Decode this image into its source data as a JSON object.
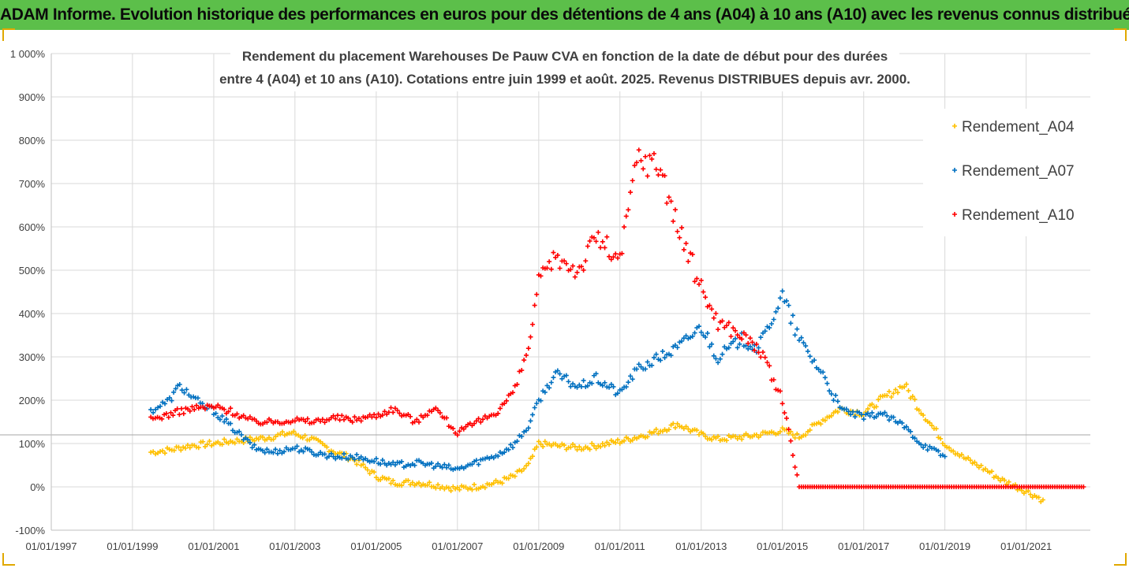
{
  "banner_title": "ADAM Informe. Evolution historique des performances en euros pour des détentions de 4 ans (A04) à 10 ans (A10) avec les revenus connus distribués",
  "chart_data": {
    "type": "scatter",
    "title_line1": "Rendement du placement Warehouses De Pauw CVA en fonction de la date de début pour des durées",
    "title_line2": "entre 4 (A04) et 10 ans (A10). Cotations entre juin 1999 et août. 2025. Revenus DISTRIBUES depuis avr. 2000.",
    "xlabel": "",
    "ylabel": "",
    "x_ticks": [
      "01/01/1997",
      "01/01/1999",
      "01/01/2001",
      "01/01/2003",
      "01/01/2005",
      "01/01/2007",
      "01/01/2009",
      "01/01/2011",
      "01/01/2013",
      "01/01/2015",
      "01/01/2017",
      "01/01/2019",
      "01/01/2021"
    ],
    "xlim": [
      "1997-01-01",
      "2022-08-01"
    ],
    "ylim": [
      -100,
      1000
    ],
    "y_ticks": [
      -100,
      0,
      100,
      200,
      300,
      400,
      500,
      600,
      700,
      800,
      900,
      1000
    ],
    "y_tick_labels": [
      "-100%",
      "0%",
      "100%",
      "200%",
      "300%",
      "400%",
      "500%",
      "600%",
      "700%",
      "800%",
      "900%",
      "1 000%"
    ],
    "reference_line_y": 120,
    "grid": true,
    "legend_position": "top-right",
    "series": [
      {
        "name": "Rendement_A04",
        "color": "#ffc000",
        "points": [
          [
            "1999-06-15",
            80
          ],
          [
            "1999-12-01",
            85
          ],
          [
            "2000-06-01",
            95
          ],
          [
            "2001-01-01",
            100
          ],
          [
            "2001-06-01",
            105
          ],
          [
            "2002-01-01",
            110
          ],
          [
            "2002-06-01",
            115
          ],
          [
            "2002-12-01",
            125
          ],
          [
            "2003-06-01",
            110
          ],
          [
            "2004-01-01",
            80
          ],
          [
            "2004-06-01",
            65
          ],
          [
            "2005-01-01",
            25
          ],
          [
            "2005-06-01",
            10
          ],
          [
            "2006-01-01",
            10
          ],
          [
            "2006-06-01",
            5
          ],
          [
            "2007-01-01",
            -5
          ],
          [
            "2007-06-01",
            0
          ],
          [
            "2008-01-01",
            10
          ],
          [
            "2008-06-01",
            25
          ],
          [
            "2008-10-01",
            50
          ],
          [
            "2009-01-01",
            100
          ],
          [
            "2009-06-01",
            95
          ],
          [
            "2010-01-01",
            90
          ],
          [
            "2010-06-01",
            95
          ],
          [
            "2011-01-01",
            105
          ],
          [
            "2011-06-01",
            115
          ],
          [
            "2012-01-01",
            130
          ],
          [
            "2012-06-01",
            145
          ],
          [
            "2013-01-01",
            120
          ],
          [
            "2013-06-01",
            110
          ],
          [
            "2014-01-01",
            115
          ],
          [
            "2014-06-01",
            120
          ],
          [
            "2015-01-01",
            130
          ],
          [
            "2015-06-01",
            115
          ],
          [
            "2016-01-01",
            155
          ],
          [
            "2016-06-01",
            180
          ],
          [
            "2017-01-01",
            170
          ],
          [
            "2017-06-01",
            200
          ],
          [
            "2018-01-01",
            235
          ],
          [
            "2018-06-01",
            175
          ],
          [
            "2019-01-01",
            100
          ],
          [
            "2019-06-01",
            70
          ],
          [
            "2020-01-01",
            40
          ],
          [
            "2020-06-01",
            15
          ],
          [
            "2021-01-01",
            -10
          ],
          [
            "2021-06-01",
            -30
          ]
        ]
      },
      {
        "name": "Rendement_A07",
        "color": "#0070c0",
        "points": [
          [
            "1999-06-15",
            175
          ],
          [
            "1999-12-01",
            200
          ],
          [
            "2000-03-01",
            235
          ],
          [
            "2000-09-01",
            190
          ],
          [
            "2001-01-01",
            175
          ],
          [
            "2001-06-01",
            140
          ],
          [
            "2002-01-01",
            90
          ],
          [
            "2002-06-01",
            80
          ],
          [
            "2003-01-01",
            90
          ],
          [
            "2003-06-01",
            80
          ],
          [
            "2004-01-01",
            70
          ],
          [
            "2004-06-01",
            70
          ],
          [
            "2005-01-01",
            60
          ],
          [
            "2005-06-01",
            50
          ],
          [
            "2006-01-01",
            55
          ],
          [
            "2006-06-01",
            50
          ],
          [
            "2007-01-01",
            40
          ],
          [
            "2007-06-01",
            55
          ],
          [
            "2008-01-01",
            75
          ],
          [
            "2008-06-01",
            100
          ],
          [
            "2008-10-01",
            140
          ],
          [
            "2009-01-01",
            200
          ],
          [
            "2009-06-01",
            260
          ],
          [
            "2010-01-01",
            230
          ],
          [
            "2010-06-01",
            250
          ],
          [
            "2011-01-01",
            215
          ],
          [
            "2011-06-01",
            270
          ],
          [
            "2012-01-01",
            300
          ],
          [
            "2012-06-01",
            320
          ],
          [
            "2013-01-01",
            370
          ],
          [
            "2013-06-01",
            300
          ],
          [
            "2014-01-01",
            340
          ],
          [
            "2014-06-01",
            320
          ],
          [
            "2015-01-01",
            440
          ],
          [
            "2015-06-01",
            340
          ],
          [
            "2016-01-01",
            260
          ],
          [
            "2016-06-01",
            180
          ],
          [
            "2017-01-01",
            160
          ],
          [
            "2017-06-01",
            170
          ],
          [
            "2018-01-01",
            140
          ],
          [
            "2018-06-01",
            100
          ],
          [
            "2019-01-01",
            70
          ]
        ]
      },
      {
        "name": "Rendement_A10",
        "color": "#ff0000",
        "points": [
          [
            "1999-06-15",
            155
          ],
          [
            "2000-01-01",
            170
          ],
          [
            "2000-06-01",
            180
          ],
          [
            "2001-01-01",
            185
          ],
          [
            "2001-06-01",
            175
          ],
          [
            "2002-01-01",
            150
          ],
          [
            "2002-06-01",
            150
          ],
          [
            "2003-01-01",
            155
          ],
          [
            "2003-06-01",
            150
          ],
          [
            "2004-01-01",
            160
          ],
          [
            "2004-06-01",
            155
          ],
          [
            "2005-01-01",
            165
          ],
          [
            "2005-06-01",
            180
          ],
          [
            "2006-01-01",
            150
          ],
          [
            "2006-06-01",
            185
          ],
          [
            "2007-01-01",
            125
          ],
          [
            "2007-06-01",
            145
          ],
          [
            "2008-01-01",
            175
          ],
          [
            "2008-06-01",
            225
          ],
          [
            "2008-10-01",
            320
          ],
          [
            "2009-01-01",
            470
          ],
          [
            "2009-06-01",
            530
          ],
          [
            "2010-01-01",
            500
          ],
          [
            "2010-06-01",
            580
          ],
          [
            "2011-01-01",
            520
          ],
          [
            "2011-06-01",
            760
          ],
          [
            "2012-01-01",
            740
          ],
          [
            "2012-06-01",
            600
          ],
          [
            "2013-01-01",
            460
          ],
          [
            "2013-06-01",
            380
          ],
          [
            "2014-01-01",
            350
          ],
          [
            "2014-06-01",
            320
          ],
          [
            "2015-01-01",
            200
          ],
          [
            "2015-06-01",
            0
          ],
          [
            "2016-01-01",
            0
          ],
          [
            "2017-01-01",
            0
          ],
          [
            "2018-01-01",
            0
          ],
          [
            "2019-01-01",
            0
          ],
          [
            "2020-01-01",
            0
          ],
          [
            "2021-01-01",
            0
          ],
          [
            "2022-06-01",
            0
          ]
        ]
      }
    ]
  }
}
